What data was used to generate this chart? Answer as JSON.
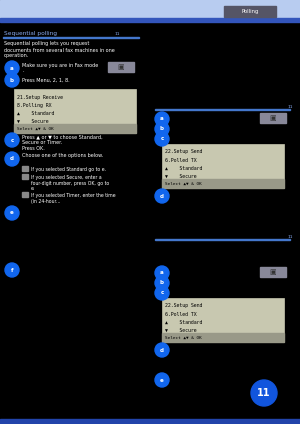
{
  "bg_color": "#000000",
  "header_bar_color": "#b8ccf0",
  "blue_stripe_color": "#3355bb",
  "text_color": "#ffffff",
  "bullet_color": "#1166ee",
  "lcd_bg": "#c8c8b0",
  "lcd_text": "#000000",
  "lcd_status_bg": "#999988",
  "section_line_color": "#4477cc",
  "section_text_color": "#88aaee",
  "fax_icon_bg": "#888899",
  "note_icon_color": "#888888",
  "bottom_bar_color": "#2244aa",
  "chapter_circle_color": "#1155dd",
  "page_tag_color": "#555566"
}
